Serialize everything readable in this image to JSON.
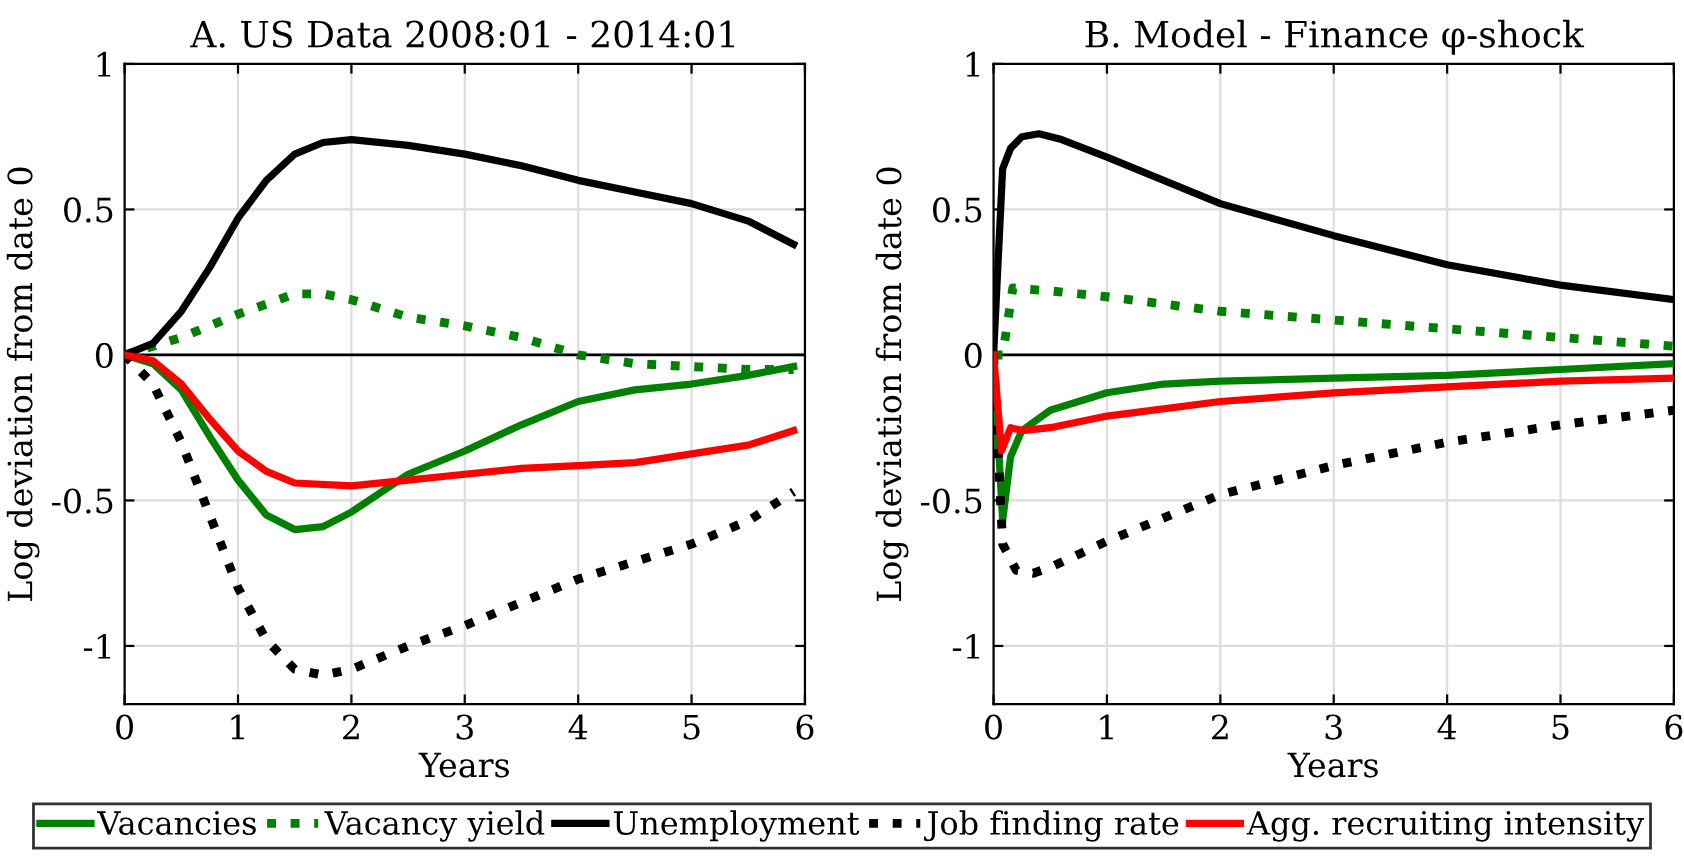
{
  "chart_data": [
    {
      "type": "line",
      "title": "A. US Data 2008:01 - 2014:01",
      "xlabel": "Years",
      "ylabel": "Log deviation from date 0",
      "xlim": [
        0,
        6
      ],
      "xticks": [
        0,
        1,
        2,
        3,
        4,
        5,
        6
      ],
      "ylim": [
        -1.2,
        1
      ],
      "yticks": [
        -1,
        -0.5,
        0,
        0.5,
        1
      ],
      "grid": true,
      "legend": "bottom",
      "ref_lines": [
        {
          "axis": "y",
          "value": 0,
          "color": "#000000"
        }
      ],
      "series": [
        {
          "name": "Vacancies",
          "color": "#008000",
          "line_style": "solid",
          "x": [
            0,
            0.25,
            0.5,
            0.75,
            1,
            1.25,
            1.5,
            1.75,
            2,
            2.5,
            3,
            3.5,
            4,
            4.5,
            5,
            5.5,
            5.9
          ],
          "values": [
            0,
            -0.03,
            -0.12,
            -0.28,
            -0.43,
            -0.55,
            -0.6,
            -0.59,
            -0.54,
            -0.41,
            -0.33,
            -0.24,
            -0.16,
            -0.12,
            -0.1,
            -0.07,
            -0.04
          ]
        },
        {
          "name": "Vacancy yield",
          "color": "#008000",
          "line_style": "dotted",
          "x": [
            0,
            0.5,
            1,
            1.5,
            1.75,
            2,
            2.5,
            3,
            3.5,
            4,
            4.5,
            5,
            5.5,
            5.9
          ],
          "values": [
            0,
            0.06,
            0.14,
            0.21,
            0.21,
            0.19,
            0.13,
            0.1,
            0.06,
            0,
            -0.03,
            -0.04,
            -0.05,
            -0.05
          ]
        },
        {
          "name": "Unemployment",
          "color": "#000000",
          "line_style": "solid",
          "x": [
            0,
            0.25,
            0.5,
            0.75,
            1,
            1.25,
            1.5,
            1.75,
            2,
            2.5,
            3,
            3.5,
            4,
            4.5,
            5,
            5.5,
            5.9
          ],
          "values": [
            0,
            0.04,
            0.15,
            0.3,
            0.47,
            0.6,
            0.69,
            0.73,
            0.74,
            0.72,
            0.69,
            0.65,
            0.6,
            0.56,
            0.52,
            0.46,
            0.38
          ]
        },
        {
          "name": "Job finding rate",
          "color": "#000000",
          "line_style": "dotted",
          "x": [
            0,
            0.25,
            0.5,
            0.75,
            1,
            1.25,
            1.5,
            1.75,
            2,
            2.5,
            3,
            3.5,
            4,
            4.5,
            5,
            5.5,
            5.9
          ],
          "values": [
            0,
            -0.1,
            -0.3,
            -0.55,
            -0.8,
            -0.98,
            -1.08,
            -1.1,
            -1.08,
            -1.0,
            -0.93,
            -0.85,
            -0.77,
            -0.71,
            -0.65,
            -0.57,
            -0.47
          ]
        },
        {
          "name": "Agg. recruiting intensity",
          "color": "#ff0000",
          "line_style": "solid",
          "x": [
            0,
            0.25,
            0.5,
            0.75,
            1,
            1.25,
            1.5,
            2,
            2.5,
            3,
            3.5,
            4,
            4.5,
            5,
            5.5,
            5.9
          ],
          "values": [
            0,
            -0.02,
            -0.1,
            -0.22,
            -0.33,
            -0.4,
            -0.44,
            -0.45,
            -0.43,
            -0.41,
            -0.39,
            -0.38,
            -0.37,
            -0.34,
            -0.31,
            -0.26
          ]
        }
      ]
    },
    {
      "type": "line",
      "title": "B. Model - Finance φ-shock",
      "xlabel": "Years",
      "ylabel": "Log deviation from date 0",
      "xlim": [
        0,
        6
      ],
      "xticks": [
        0,
        1,
        2,
        3,
        4,
        5,
        6
      ],
      "ylim": [
        -1.2,
        1
      ],
      "yticks": [
        -1,
        -0.5,
        0,
        0.5,
        1
      ],
      "grid": true,
      "legend": "bottom",
      "ref_lines": [
        {
          "axis": "y",
          "value": 0,
          "color": "#000000"
        }
      ],
      "series": [
        {
          "name": "Vacancies",
          "color": "#008000",
          "line_style": "solid",
          "x": [
            0,
            0.08,
            0.15,
            0.25,
            0.5,
            1,
            1.5,
            2,
            3,
            4,
            5,
            6
          ],
          "values": [
            0,
            -0.57,
            -0.35,
            -0.26,
            -0.19,
            -0.13,
            -0.1,
            -0.09,
            -0.08,
            -0.07,
            -0.05,
            -0.03
          ]
        },
        {
          "name": "Vacancy yield",
          "color": "#008000",
          "line_style": "dotted",
          "x": [
            0,
            0.08,
            0.17,
            0.5,
            1,
            2,
            3,
            4,
            5,
            6
          ],
          "values": [
            0,
            0,
            0.23,
            0.22,
            0.2,
            0.15,
            0.12,
            0.09,
            0.06,
            0.03
          ]
        },
        {
          "name": "Unemployment",
          "color": "#000000",
          "line_style": "solid",
          "x": [
            0,
            0.08,
            0.15,
            0.25,
            0.4,
            0.6,
            1,
            1.5,
            2,
            3,
            4,
            5,
            6
          ],
          "values": [
            0,
            0.64,
            0.71,
            0.75,
            0.76,
            0.74,
            0.68,
            0.6,
            0.52,
            0.41,
            0.31,
            0.24,
            0.19
          ]
        },
        {
          "name": "Job finding rate",
          "color": "#000000",
          "line_style": "dotted",
          "x": [
            0,
            0.08,
            0.2,
            0.35,
            0.5,
            1,
            2,
            3,
            4,
            5,
            6
          ],
          "values": [
            0,
            -0.65,
            -0.74,
            -0.75,
            -0.73,
            -0.64,
            -0.48,
            -0.38,
            -0.3,
            -0.24,
            -0.19
          ]
        },
        {
          "name": "Agg. recruiting intensity",
          "color": "#ff0000",
          "line_style": "solid",
          "x": [
            0,
            0.07,
            0.15,
            0.25,
            0.5,
            1,
            2,
            3,
            4,
            5,
            6
          ],
          "values": [
            0,
            -0.33,
            -0.25,
            -0.26,
            -0.25,
            -0.21,
            -0.16,
            -0.13,
            -0.11,
            -0.09,
            -0.08
          ]
        }
      ]
    }
  ]
}
